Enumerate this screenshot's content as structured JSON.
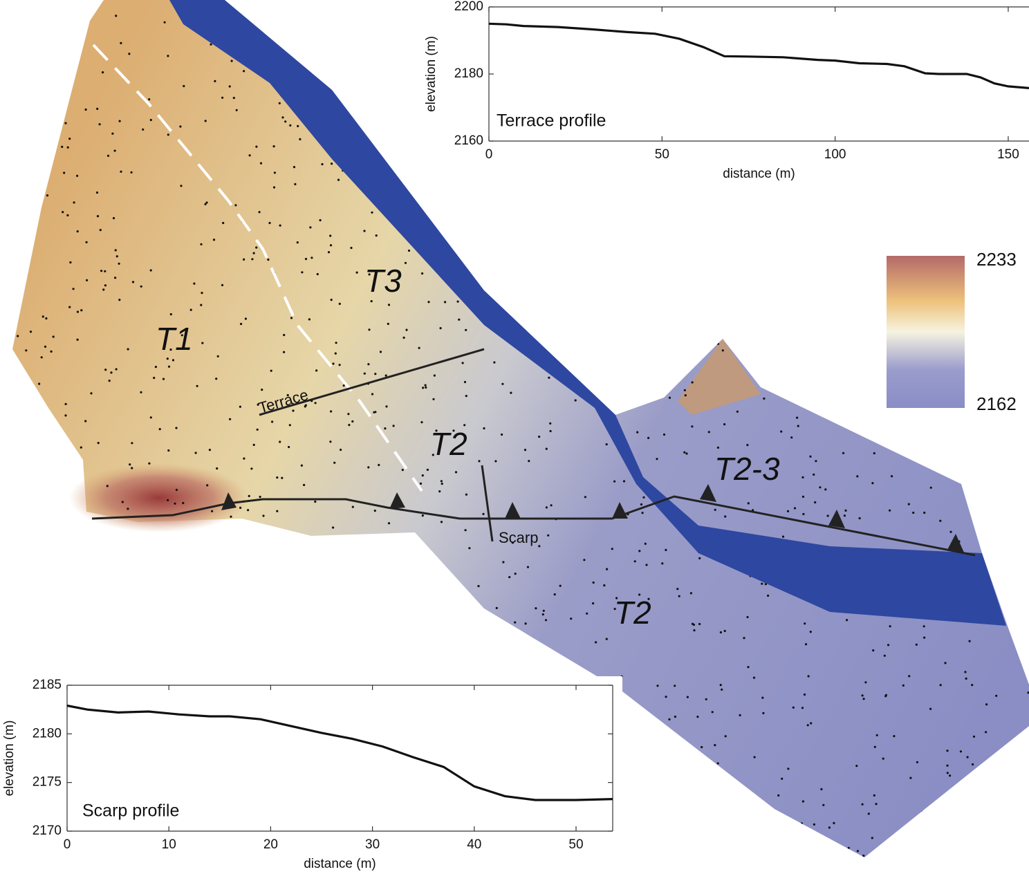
{
  "map": {
    "labels": [
      "T1",
      "T3",
      "T2",
      "T2",
      "T2-3"
    ],
    "terrace_line": "Terrace",
    "scarp_line": "Scarp",
    "colorbar": {
      "max": 2233,
      "min": 2162
    }
  },
  "chart_data": [
    {
      "type": "line",
      "annotation": "Terrace profile",
      "x_label": "distance (m)",
      "y_label": "elevation (m)",
      "x": [
        0,
        5,
        10,
        20,
        30,
        40,
        48,
        55,
        62,
        68,
        75,
        85,
        95,
        100,
        107,
        115,
        120,
        126,
        130,
        138,
        142,
        146,
        150,
        156
      ],
      "series": [
        {
          "color": "#111111",
          "values": [
            2195,
            2194.8,
            2194.3,
            2194,
            2193.3,
            2192.5,
            2192,
            2190.5,
            2188,
            2185.3,
            2185.2,
            2185,
            2184.2,
            2184,
            2183.2,
            2183,
            2182.3,
            2180.2,
            2180,
            2180,
            2179,
            2177.2,
            2176.3,
            2175.8
          ]
        }
      ],
      "xlim": [
        0,
        156
      ],
      "xticks": [
        0,
        50,
        100,
        150
      ],
      "ylim": [
        2160,
        2200
      ],
      "yticks": [
        2160,
        2180,
        2200
      ]
    },
    {
      "type": "line",
      "annotation": "Scarp profile",
      "x_label": "distance (m)",
      "y_label": "elevation (m)",
      "x": [
        0,
        2,
        5,
        8,
        11,
        14,
        16,
        19,
        22,
        25,
        28,
        31,
        34,
        37,
        40,
        43,
        46,
        50,
        53.6
      ],
      "series": [
        {
          "color": "#111111",
          "values": [
            2182.9,
            2182.5,
            2182.2,
            2182.3,
            2182,
            2181.8,
            2181.8,
            2181.5,
            2180.8,
            2180.1,
            2179.5,
            2178.7,
            2177.6,
            2176.6,
            2174.6,
            2173.6,
            2173.2,
            2173.2,
            2173.3
          ]
        }
      ],
      "xlim": [
        0,
        53.6
      ],
      "xticks": [
        0,
        10,
        20,
        30,
        40,
        50
      ],
      "ylim": [
        2170,
        2185
      ],
      "yticks": [
        2170,
        2175,
        2180,
        2185
      ]
    }
  ]
}
